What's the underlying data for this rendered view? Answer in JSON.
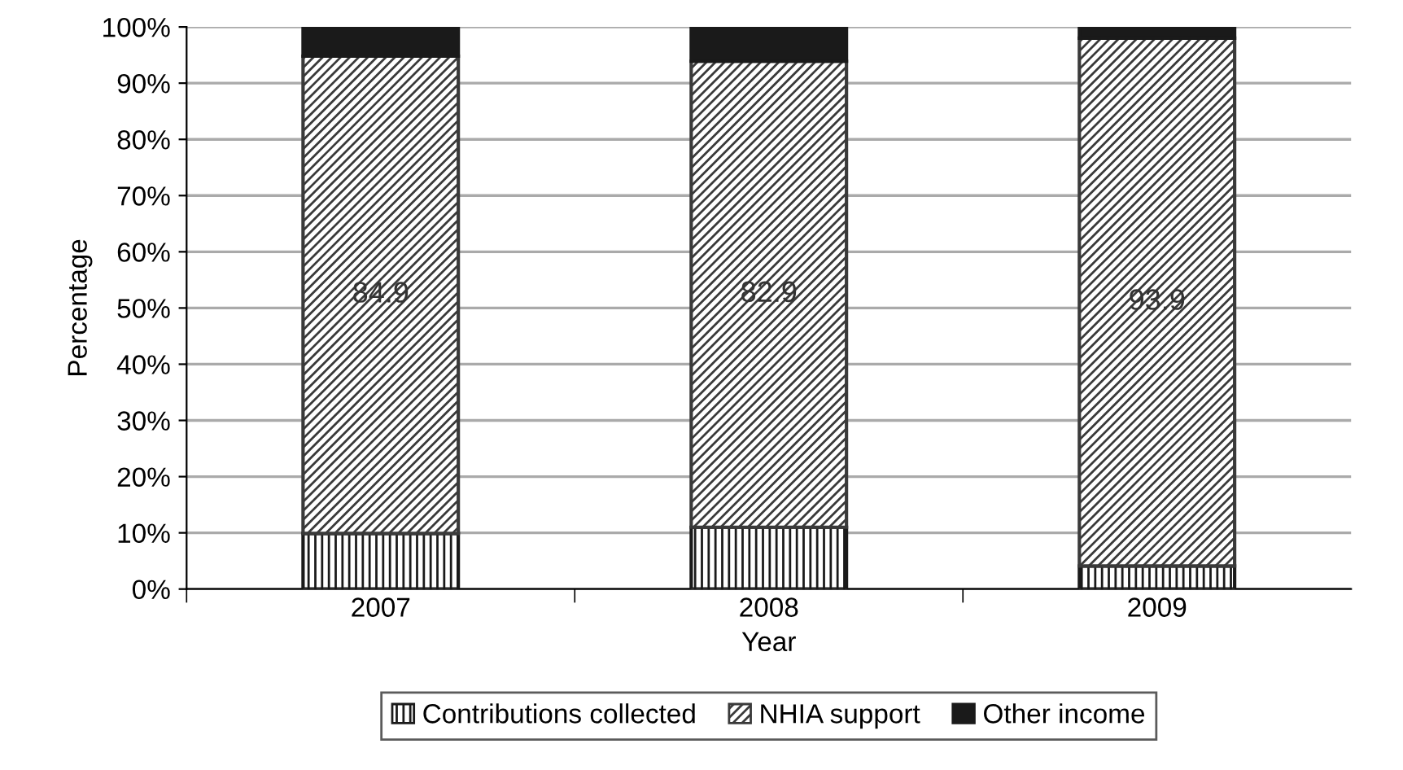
{
  "chart_data": {
    "type": "bar",
    "stacked": true,
    "xlabel": "Year",
    "ylabel": "Percentage",
    "categories": [
      "2007",
      "2008",
      "2009"
    ],
    "series": [
      {
        "name": "Contributions collected",
        "color": "#1a1a1a",
        "values": [
          9.9,
          11.0,
          4.1
        ]
      },
      {
        "name": "NHIA support",
        "color": "#3a3a3a",
        "values": [
          84.9,
          82.9,
          93.9
        ],
        "value_labels": [
          "84.9",
          "82.9",
          "93.9"
        ]
      },
      {
        "name": "Other income",
        "color": "#1a1a1a",
        "values": [
          5.2,
          6.1,
          2.0
        ]
      }
    ],
    "ylim": [
      0,
      100
    ],
    "yticks": [
      {
        "value": 0,
        "label": "0%"
      },
      {
        "value": 10,
        "label": "10%"
      },
      {
        "value": 20,
        "label": "20%"
      },
      {
        "value": 30,
        "label": "30%"
      },
      {
        "value": 40,
        "label": "40%"
      },
      {
        "value": 50,
        "label": "50%"
      },
      {
        "value": 60,
        "label": "60%"
      },
      {
        "value": 70,
        "label": "70%"
      },
      {
        "value": 80,
        "label": "80%"
      },
      {
        "value": 90,
        "label": "90%"
      },
      {
        "value": 100,
        "label": "100%"
      }
    ],
    "grid": "y",
    "legend": "bottom"
  }
}
